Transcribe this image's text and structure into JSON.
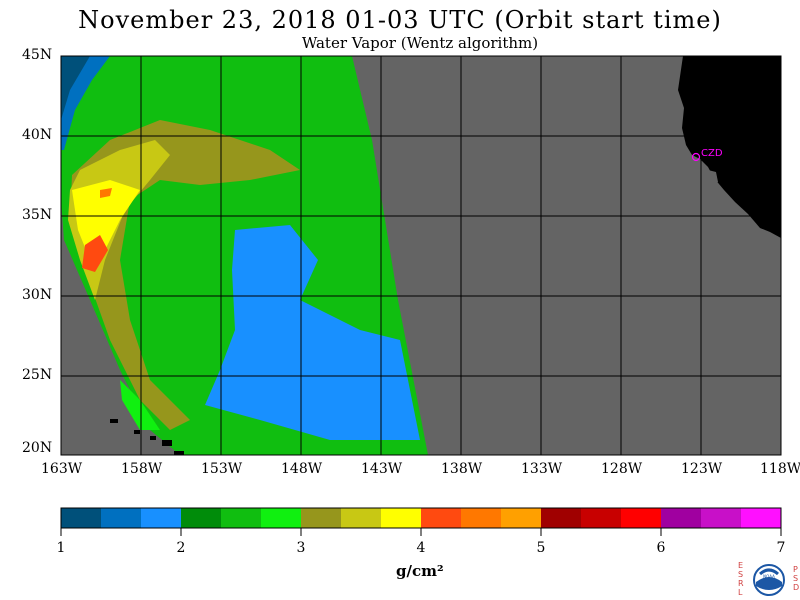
{
  "header": {
    "title": "November 23, 2018  01-03 UTC  (Orbit start time)",
    "subtitle": "Water Vapor (Wentz algorithm)"
  },
  "map": {
    "lat_labels": [
      "45N",
      "40N",
      "35N",
      "30N",
      "25N",
      "20N"
    ],
    "lon_labels": [
      "163W",
      "158W",
      "153W",
      "148W",
      "143W",
      "138W",
      "133W",
      "128W",
      "123W",
      "118W"
    ],
    "station_label": "CZD",
    "colors": {
      "no_data": "#646464",
      "land": "#000000",
      "grid": "#000000",
      "station": "#ff00ff"
    }
  },
  "colorbar": {
    "unit": "g/cm²",
    "ticks": [
      "1",
      "2",
      "3",
      "4",
      "5",
      "6",
      "7"
    ],
    "colors": [
      "#00507a",
      "#0070c0",
      "#1890ff",
      "#008c0a",
      "#10be10",
      "#10f010",
      "#96961c",
      "#c8c814",
      "#ffff00",
      "#ff4a10",
      "#ff7800",
      "#ffa000",
      "#a00000",
      "#c80000",
      "#ff0000",
      "#a000a0",
      "#c810c8",
      "#ff10ff"
    ]
  },
  "logo": {
    "left_letters": [
      "E",
      "S",
      "R",
      "L"
    ],
    "right_letters": [
      "P",
      "S",
      "D"
    ],
    "text": "NOAA"
  }
}
